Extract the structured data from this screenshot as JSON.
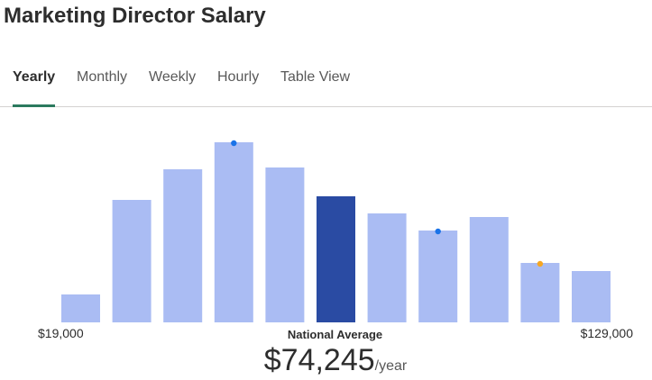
{
  "page": {
    "title": "Marketing Director Salary"
  },
  "tabs": [
    {
      "label": "Yearly",
      "active": true
    },
    {
      "label": "Monthly",
      "active": false
    },
    {
      "label": "Weekly",
      "active": false
    },
    {
      "label": "Hourly",
      "active": false
    },
    {
      "label": "Table View",
      "active": false
    }
  ],
  "chart_data": {
    "type": "bar",
    "bars": [
      0.155,
      0.68,
      0.85,
      1.0,
      0.86,
      0.7,
      0.605,
      0.51,
      0.585,
      0.33,
      0.285
    ],
    "highlight_index": 5,
    "markers": [
      {
        "bar": 3,
        "color": "#1a73e8"
      },
      {
        "bar": 7,
        "color": "#1a73e8"
      },
      {
        "bar": 9,
        "color": "#f5a623"
      }
    ],
    "colors": {
      "bar": "#aabcf3",
      "highlight": "#2a4ba3"
    },
    "min_label": "$19,000",
    "max_label": "$129,000",
    "center_label": "National Average"
  },
  "average": {
    "value": "$74,245",
    "unit": "/year"
  }
}
